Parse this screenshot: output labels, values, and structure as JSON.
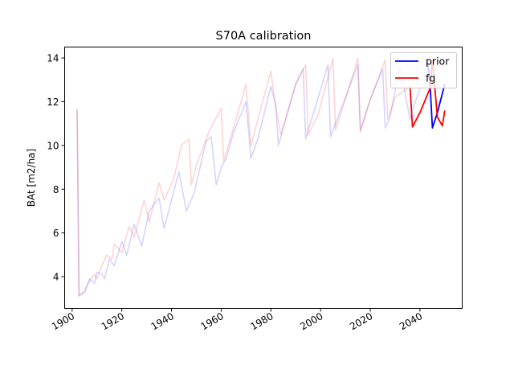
{
  "chart_data": {
    "type": "line",
    "title": "S70A calibration",
    "xlabel": "",
    "ylabel": "BAt [m2/ha]",
    "xlim": [
      1897,
      2057
    ],
    "ylim": [
      2.55,
      14.5
    ],
    "xticks": [
      1900,
      1920,
      1940,
      1960,
      1980,
      2000,
      2020,
      2040
    ],
    "yticks": [
      4,
      6,
      8,
      10,
      12,
      14
    ],
    "grid": false,
    "legend": {
      "position": "top-right",
      "entries": [
        "prior",
        "fg"
      ]
    },
    "series": [
      {
        "name": "prior",
        "color": "#0000ff",
        "faded_until_x": 2041,
        "x": [
          1902,
          1902.8,
          1905,
          1907,
          1909,
          1910,
          1912,
          1913,
          1915,
          1917,
          1920,
          1922,
          1925,
          1928,
          1931,
          1935,
          1937,
          1943,
          1946,
          1949,
          1954,
          1955,
          1956,
          1958,
          1960,
          1962,
          1965,
          1970,
          1972,
          1975,
          1980,
          1982,
          1983,
          1985,
          1990,
          1993,
          1994,
          1998,
          2003,
          2004,
          2006,
          2010,
          2015,
          2016,
          2020,
          2025,
          2026,
          2028,
          2030,
          2032,
          2036,
          2037,
          2040,
          2043,
          2044,
          2045,
          2047,
          2050
        ],
        "y": [
          11.6,
          3.15,
          3.3,
          3.9,
          3.7,
          4.2,
          4.1,
          3.9,
          4.8,
          4.5,
          5.6,
          5.0,
          6.4,
          5.4,
          7.0,
          7.6,
          6.2,
          8.8,
          7.0,
          7.8,
          10.2,
          10.3,
          10.4,
          8.2,
          9.0,
          9.4,
          10.6,
          12.0,
          9.4,
          10.4,
          12.7,
          11.8,
          10.0,
          10.8,
          12.8,
          13.5,
          10.3,
          11.8,
          13.7,
          10.4,
          11.0,
          12.2,
          13.7,
          10.7,
          12.1,
          13.5,
          10.8,
          11.3,
          12.5,
          13.6,
          11.2,
          11.6,
          12.6,
          13.8,
          12.9,
          10.8,
          11.5,
          12.8
        ]
      },
      {
        "name": "fg",
        "color": "#ff0000",
        "faded_until_x": 2036,
        "x": [
          1902,
          1902.8,
          1905,
          1907,
          1909,
          1910,
          1912,
          1914,
          1916,
          1917,
          1920,
          1923,
          1925,
          1929,
          1931,
          1935,
          1937,
          1941,
          1944,
          1947,
          1948,
          1950,
          1955,
          1960,
          1961,
          1966,
          1970,
          1972,
          1976,
          1980,
          1982,
          1984,
          1990,
          1994,
          1995,
          1999,
          2005,
          2006,
          2010,
          2015,
          2016,
          2020,
          2026,
          2027,
          2030,
          2036,
          2037,
          2040,
          2044,
          2045,
          2047,
          2049,
          2050
        ],
        "y": [
          11.7,
          3.1,
          3.3,
          3.8,
          4.1,
          3.9,
          4.5,
          5.0,
          4.8,
          5.5,
          5.1,
          6.3,
          5.8,
          7.5,
          6.5,
          8.3,
          7.5,
          8.5,
          10.0,
          10.3,
          8.2,
          9.1,
          10.6,
          11.7,
          9.3,
          11.2,
          12.8,
          10.0,
          11.7,
          13.4,
          11.7,
          10.5,
          12.8,
          13.7,
          10.5,
          11.4,
          14.0,
          10.7,
          12.1,
          14.0,
          10.6,
          12.1,
          13.9,
          11.2,
          12.2,
          12.7,
          10.85,
          11.5,
          12.6,
          13.9,
          11.3,
          10.9,
          11.6
        ]
      }
    ]
  }
}
